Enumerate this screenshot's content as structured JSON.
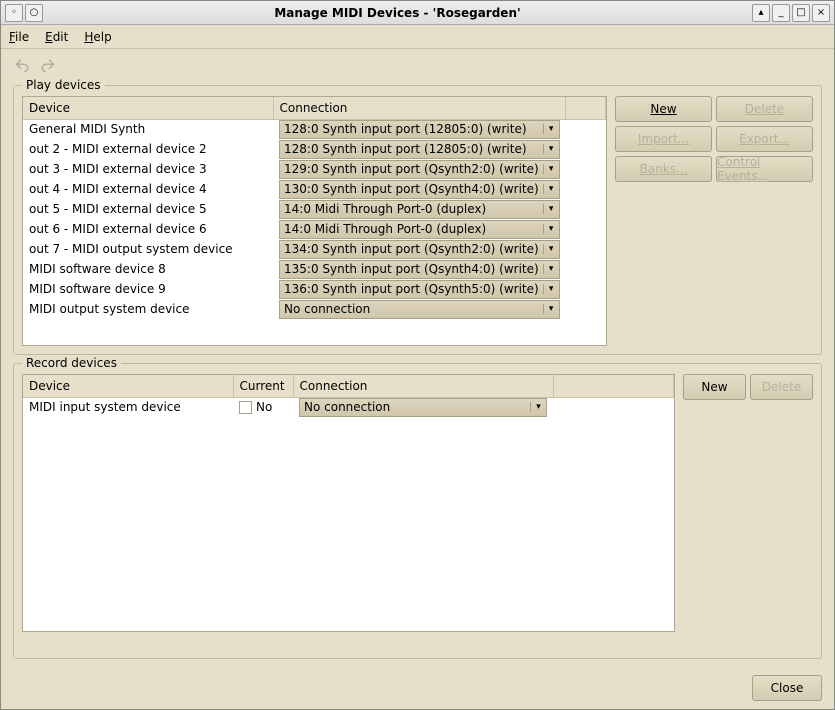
{
  "window": {
    "title": "Manage MIDI Devices - 'Rosegarden'"
  },
  "menubar": {
    "file": "File",
    "edit": "Edit",
    "help": "Help"
  },
  "play_devices": {
    "legend": "Play devices",
    "headers": {
      "device": "Device",
      "connection": "Connection"
    },
    "rows": [
      {
        "device": "General MIDI Synth",
        "connection": "128:0 Synth input port (12805:0) (write)"
      },
      {
        "device": "out 2 - MIDI external device 2",
        "connection": "128:0 Synth input port (12805:0) (write)"
      },
      {
        "device": "out 3 - MIDI external device 3",
        "connection": "129:0 Synth input port (Qsynth2:0) (write)"
      },
      {
        "device": "out 4 - MIDI external device 4",
        "connection": "130:0 Synth input port (Qsynth4:0) (write)"
      },
      {
        "device": "out 5 - MIDI external device 5",
        "connection": "14:0 Midi Through Port-0 (duplex)"
      },
      {
        "device": "out 6 - MIDI external device 6",
        "connection": "14:0 Midi Through Port-0 (duplex)"
      },
      {
        "device": "out 7 - MIDI output system device",
        "connection": "134:0 Synth input port (Qsynth2:0) (write)"
      },
      {
        "device": "MIDI software device 8",
        "connection": "135:0 Synth input port (Qsynth4:0) (write)"
      },
      {
        "device": "MIDI software device 9",
        "connection": "136:0 Synth input port (Qsynth5:0) (write)"
      },
      {
        "device": "MIDI output system device",
        "connection": "No connection"
      }
    ],
    "buttons": {
      "new": "New",
      "delete": "Delete",
      "import": "Import...",
      "export": "Export...",
      "banks": "Banks...",
      "control_events": "Control Events..."
    }
  },
  "record_devices": {
    "legend": "Record devices",
    "headers": {
      "device": "Device",
      "current": "Current",
      "connection": "Connection"
    },
    "rows": [
      {
        "device": "MIDI input system device",
        "current": "No",
        "connection": "No connection"
      }
    ],
    "buttons": {
      "new": "New",
      "delete": "Delete"
    }
  },
  "footer": {
    "close": "Close"
  },
  "colors": {
    "background": "#e6dfc9",
    "button_grad_top": "#e4dcc4",
    "button_grad_bottom": "#d4ccb2",
    "border": "#a89f86",
    "disabled_text": "#b8b098"
  }
}
